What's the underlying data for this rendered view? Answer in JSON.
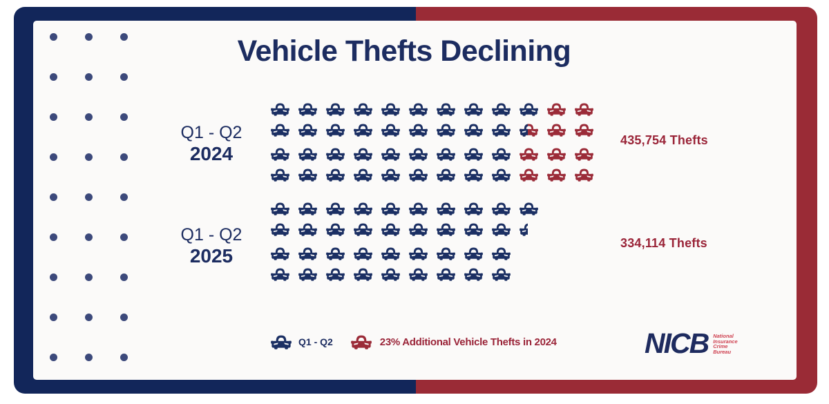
{
  "title": "Vehicle Thefts Declining",
  "chart_data": {
    "type": "pictograph",
    "title": "Vehicle Thefts Declining",
    "unit_icon": "car-icon",
    "groups": [
      {
        "period": "Q1 - Q2",
        "year": "2024",
        "value": 435754,
        "value_label": "435,754 Thefts",
        "icon_rows": [
          {
            "navy": 10,
            "split": 0,
            "red": 2
          },
          {
            "navy": 9,
            "split": 1,
            "red": 2
          },
          {
            "navy": 9,
            "split": 0,
            "red": 3
          },
          {
            "navy": 9,
            "split": 0,
            "red": 3
          }
        ]
      },
      {
        "period": "Q1 - Q2",
        "year": "2025",
        "value": 334114,
        "value_label": "334,114 Thefts",
        "icon_rows": [
          {
            "navy": 10,
            "partial": 0
          },
          {
            "navy": 9,
            "partial": 1
          },
          {
            "navy": 9,
            "partial": 0
          },
          {
            "navy": 9,
            "partial": 0
          }
        ]
      }
    ],
    "legend": [
      {
        "icon": "navy-car-icon",
        "color": "#1B2F63",
        "label": "Q1 - Q2"
      },
      {
        "icon": "red-car-icon",
        "color": "#9B2B38",
        "label": "23% Additional Vehicle Thefts in 2024"
      }
    ]
  },
  "colors": {
    "frame_navy": "#12265A",
    "frame_red": "#9A2B36",
    "navy_text": "#1C2C60",
    "red_text": "#9A2438",
    "dot": "#3C497B",
    "background": "#FBFAF9"
  },
  "logo": {
    "acronym": "NICB",
    "sub_lines": [
      "National",
      "Insurance",
      "Crime",
      "Bureau"
    ]
  }
}
